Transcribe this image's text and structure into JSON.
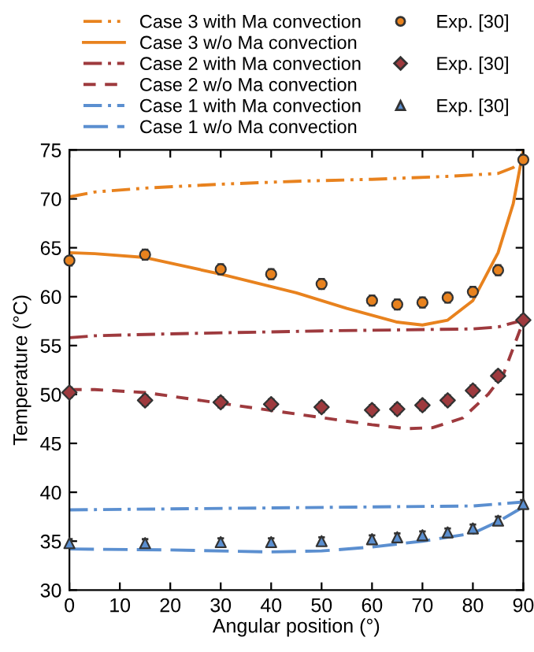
{
  "chart_data": {
    "type": "line",
    "xlabel": "Angular position (°)",
    "ylabel": "Temperature (°C)",
    "xlim": [
      0,
      90
    ],
    "ylim": [
      30,
      75
    ],
    "xticks": [
      0,
      10,
      20,
      30,
      40,
      50,
      60,
      70,
      80,
      90
    ],
    "yticks": [
      30,
      35,
      40,
      45,
      50,
      55,
      60,
      65,
      70,
      75
    ],
    "grid": false,
    "legend": "top",
    "series": [
      {
        "name": "Case 3 with Ma convection",
        "color": "#e8821e",
        "line_style": "dashdotdot",
        "x": [
          0,
          5,
          15,
          30,
          45,
          60,
          75,
          85,
          88,
          90
        ],
        "values": [
          70.2,
          70.7,
          71.1,
          71.5,
          71.8,
          72.0,
          72.3,
          72.6,
          73.2,
          74.0
        ]
      },
      {
        "name": "Case 3 w/o Ma convection",
        "color": "#e8821e",
        "line_style": "solid",
        "x": [
          0,
          5,
          15,
          30,
          45,
          55,
          65,
          70,
          75,
          80,
          85,
          88,
          90
        ],
        "values": [
          64.5,
          64.4,
          64.0,
          62.3,
          60.4,
          58.8,
          57.4,
          57.1,
          57.6,
          59.6,
          64.5,
          69.5,
          75.0
        ]
      },
      {
        "name": "Exp. [30]",
        "type": "scatter",
        "marker": "circle",
        "color": "#e8821e",
        "x": [
          0,
          15,
          30,
          40,
          50,
          60,
          65,
          70,
          75,
          80,
          85,
          90
        ],
        "values": [
          63.7,
          64.3,
          62.8,
          62.3,
          61.3,
          59.6,
          59.2,
          59.4,
          59.9,
          60.5,
          62.7,
          74.0
        ],
        "errors": [
          0.5,
          0.5,
          0.5,
          0.5,
          0.5,
          0.5,
          0.5,
          0.5,
          0.5,
          0.5,
          0.5,
          0.5
        ]
      },
      {
        "name": "Case 2 with Ma convection",
        "color": "#9e3a3e",
        "line_style": "dashdot",
        "x": [
          0,
          5,
          20,
          50,
          80,
          85,
          90
        ],
        "values": [
          55.8,
          56.0,
          56.2,
          56.5,
          56.7,
          56.9,
          57.6
        ]
      },
      {
        "name": "Case 2 w/o Ma convection",
        "color": "#9e3a3e",
        "line_style": "dashed",
        "x": [
          0,
          5,
          15,
          30,
          45,
          60,
          67,
          72,
          78,
          83,
          86,
          90
        ],
        "values": [
          50.5,
          50.5,
          50.2,
          49.1,
          48.0,
          46.9,
          46.5,
          46.6,
          47.6,
          50.0,
          52.0,
          57.5
        ]
      },
      {
        "name": "Exp. [30]",
        "type": "scatter",
        "marker": "diamond",
        "color": "#9e3a3e",
        "x": [
          0,
          15,
          30,
          40,
          50,
          60,
          65,
          70,
          75,
          80,
          85,
          90
        ],
        "values": [
          50.2,
          49.4,
          49.2,
          49.0,
          48.7,
          48.4,
          48.5,
          48.9,
          49.4,
          50.4,
          51.9,
          57.6
        ],
        "errors": [
          0.5,
          0.5,
          0.5,
          0.5,
          0.5,
          0.5,
          0.5,
          0.5,
          0.5,
          0.5,
          0.5,
          0.5
        ]
      },
      {
        "name": "Case 1 with Ma convection",
        "color": "#5b8fd0",
        "line_style": "dashdot",
        "x": [
          0,
          40,
          80,
          90
        ],
        "values": [
          38.2,
          38.4,
          38.6,
          39.0
        ]
      },
      {
        "name": "Case 1 w/o Ma convection",
        "color": "#5b8fd0",
        "line_style": "longdash",
        "x": [
          0,
          20,
          40,
          50,
          60,
          70,
          80,
          85,
          90
        ],
        "values": [
          34.2,
          34.1,
          33.9,
          34.0,
          34.4,
          35.0,
          35.8,
          37.0,
          38.5
        ]
      },
      {
        "name": "Exp. [30]",
        "type": "scatter",
        "marker": "triangle",
        "color": "#5b8fd0",
        "x": [
          0,
          15,
          30,
          40,
          50,
          60,
          65,
          70,
          75,
          80,
          85,
          90
        ],
        "values": [
          34.8,
          34.8,
          34.9,
          34.9,
          35.0,
          35.2,
          35.4,
          35.6,
          35.9,
          36.3,
          37.1,
          38.8
        ],
        "errors": [
          0.4,
          0.4,
          0.4,
          0.4,
          0.4,
          0.4,
          0.4,
          0.4,
          0.4,
          0.4,
          0.4,
          0.4
        ]
      }
    ]
  }
}
